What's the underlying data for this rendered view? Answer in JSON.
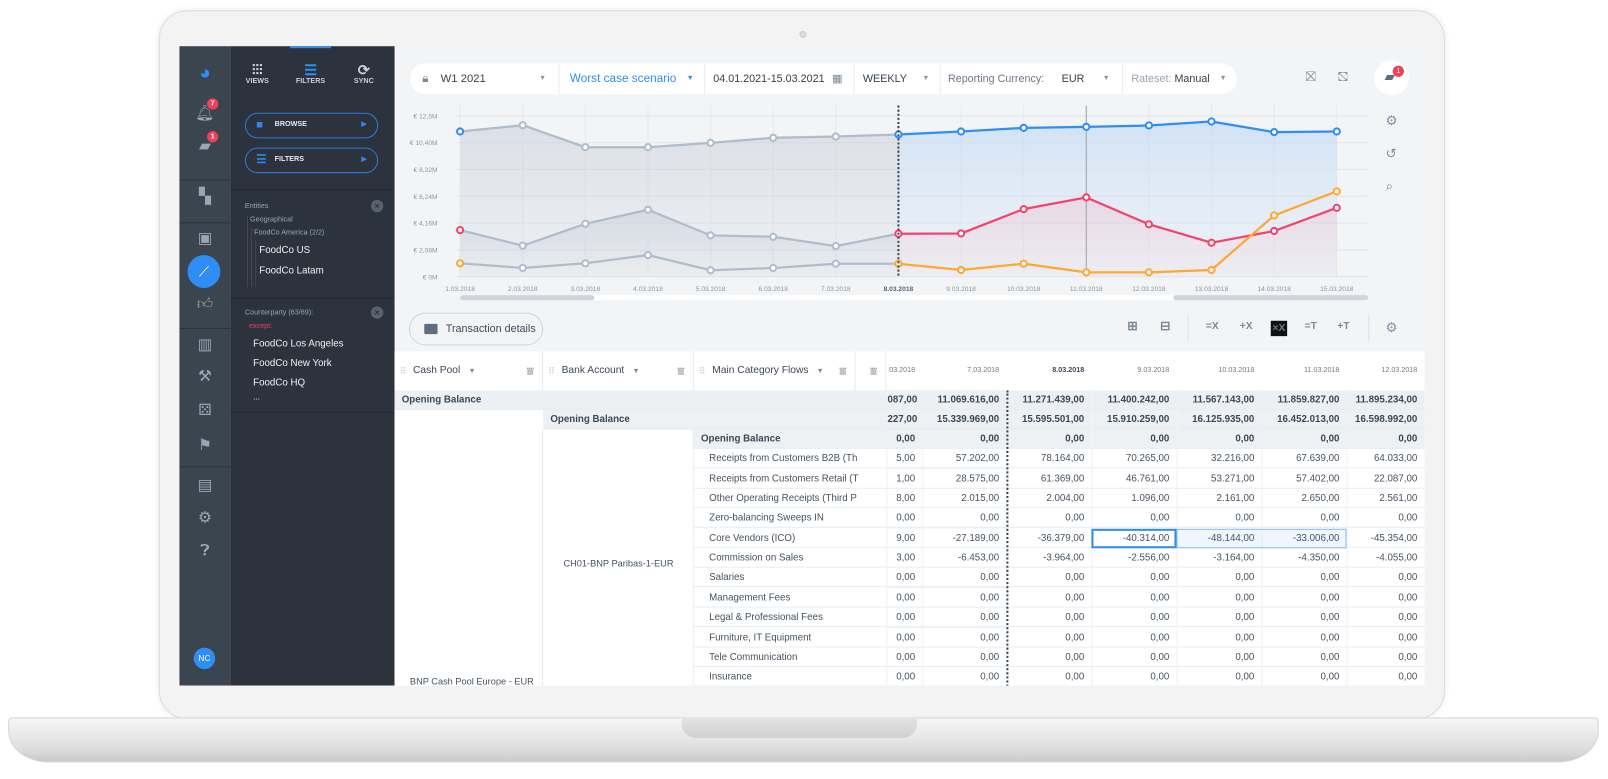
{
  "app": {
    "rail": {
      "badges": {
        "notifications": "7",
        "messages": "1"
      },
      "items": [
        "logo-icon",
        "bell-icon",
        "message-icon",
        "dashboard-icon",
        "wallet-icon",
        "chart-line-icon",
        "thumbs-up-icon",
        "report-icon",
        "gavel-icon",
        "dice-icon",
        "flag-icon",
        "document-icon",
        "gear-icon",
        "help-icon"
      ],
      "avatar": "NC"
    },
    "panel": {
      "tabs": [
        {
          "label": "VIEWS"
        },
        {
          "label": "FILTERS"
        },
        {
          "label": "SYNC"
        }
      ],
      "active_tab": "FILTERS",
      "browse_label": "BROWSE",
      "filters_label": "FILTERS",
      "entities": {
        "title": "Entities",
        "group": "Geographical",
        "subgroup": "FoodCo America (2/2)",
        "items": [
          "FoodCo US",
          "FoodCo Latam"
        ]
      },
      "counterparty": {
        "title": "Counterparty (63/69):",
        "except_label": "except:",
        "items": [
          "FoodCo Los Angeles",
          "FoodCo New York",
          "FoodCo HQ",
          "..."
        ]
      }
    },
    "toolbar": {
      "version": "W1 2021",
      "scenario": "Worst case scenario",
      "date_range": "04.01.2021-15.03.2021",
      "period": "WEEKLY",
      "currency_label": "Reporting Currency:",
      "currency": "EUR",
      "rateset_label": "Rateset:",
      "rateset": "Manual",
      "chat_badge": "1"
    },
    "actions": {
      "transaction_details": "Transaction details",
      "group_buttons": [
        "=X",
        "+X",
        "×X",
        "=T",
        "+T"
      ]
    },
    "colors": {
      "accent": "#2f8df5",
      "actual": "#b1bccb",
      "series_blue": "#2f8df5",
      "series_red": "#f4436c",
      "series_orange": "#ffa733",
      "panel": "#2c333d",
      "rail": "#3a4550"
    }
  },
  "chart_data": {
    "type": "line",
    "x": [
      "1.03.2018",
      "2.03.2018",
      "3.03.2018",
      "4.03.2018",
      "5.03.2018",
      "6.03.2018",
      "7.03.2018",
      "8.03.2018",
      "9.03.2018",
      "10.03.2018",
      "11.03.2018",
      "12.03.2018",
      "13.03.2018",
      "14.03.2018",
      "15.03.2018"
    ],
    "current_date": "8.03.2018",
    "y_ticks": [
      "€ 0M",
      "€ 2,08M",
      "€ 4,16M",
      "€ 6,24M",
      "€ 8,32M",
      "€ 10,40M",
      "€ 12,5M"
    ],
    "ylim": [
      0,
      12.5
    ],
    "y_unit": "M EUR",
    "grid": true,
    "series": [
      {
        "color": "#2f8df5",
        "values": [
          11.28,
          11.77,
          10.06,
          10.06,
          10.4,
          10.79,
          10.89,
          11.05,
          11.28,
          11.56,
          11.64,
          11.75,
          12.06,
          11.23,
          11.28
        ]
      },
      {
        "color": "#f4436c",
        "values": [
          3.62,
          2.41,
          4.11,
          5.2,
          3.21,
          3.1,
          2.38,
          3.34,
          3.36,
          5.25,
          6.16,
          4.07,
          2.64,
          3.55,
          5.35
        ]
      },
      {
        "color": "#ffa733",
        "values": [
          1.04,
          0.68,
          1.04,
          1.68,
          0.5,
          0.68,
          1.01,
          1.01,
          0.52,
          1.01,
          0.34,
          0.34,
          0.52,
          4.76,
          6.63
        ]
      }
    ]
  },
  "table": {
    "headers": [
      "Cash Pool",
      "Bank Account",
      "Main Category Flows"
    ],
    "date_columns": [
      "03.2018",
      "7.03.2018",
      "8.03.2018",
      "9.03.2018",
      "10.03.2018",
      "11.03.2018",
      "12.03.2018"
    ],
    "cash_pool": "BNP Cash Pool Europe - EUR",
    "bank_account": "CH01-BNP Paribas-1-EUR",
    "rows": [
      {
        "level": 1,
        "label": "Opening Balance",
        "values": [
          "087,00",
          "11.069.616,00",
          "11.271.439,00",
          "11.400.242,00",
          "11.567.143,00",
          "11.859.827,00",
          "11.895.234,00"
        ]
      },
      {
        "level": 2,
        "label": "Opening Balance",
        "values": [
          "227,00",
          "15.339.969,00",
          "15.595.501,00",
          "15.910.259,00",
          "16.125.935,00",
          "16.452.013,00",
          "16.598.992,00"
        ]
      },
      {
        "level": 3,
        "label": "Opening Balance",
        "values": [
          "0,00",
          "0,00",
          "0,00",
          "0,00",
          "0,00",
          "0,00",
          "0,00"
        ]
      },
      {
        "level": 4,
        "label": "Receipts from Customers B2B (Th",
        "values": [
          "5,00",
          "57.202,00",
          "78.164,00",
          "70.265,00",
          "32.216,00",
          "67.639,00",
          "64.033,00"
        ]
      },
      {
        "level": 4,
        "label": "Receipts from Customers Retail (T",
        "values": [
          "1,00",
          "28.575,00",
          "61.369,00",
          "46.761,00",
          "53.271,00",
          "57.402,00",
          "22.087,00"
        ]
      },
      {
        "level": 4,
        "label": "Other Operating Receipts (Third P",
        "values": [
          "8,00",
          "2.015,00",
          "2.004,00",
          "1.096,00",
          "2.161,00",
          "2.650,00",
          "2.561,00"
        ]
      },
      {
        "level": 4,
        "label": "Zero-balancing Sweeps IN",
        "values": [
          "0,00",
          "0,00",
          "0,00",
          "0,00",
          "0,00",
          "0,00",
          "0,00"
        ]
      },
      {
        "level": 4,
        "label": "Core Vendors (ICO)",
        "values": [
          "9,00",
          "-27.189,00",
          "-36.379,00",
          "-40.314,00",
          "-48.144,00",
          "-33.006,00",
          "-45.354,00"
        ]
      },
      {
        "level": 4,
        "label": "Commission on Sales",
        "values": [
          "3,00",
          "-6.453,00",
          "-3.964,00",
          "-2.556,00",
          "-3.164,00",
          "-4.350,00",
          "-4.055,00"
        ]
      },
      {
        "level": 4,
        "label": "Salaries",
        "values": [
          "0,00",
          "0,00",
          "0,00",
          "0,00",
          "0,00",
          "0,00",
          "0,00"
        ]
      },
      {
        "level": 4,
        "label": "Management Fees",
        "values": [
          "0,00",
          "0,00",
          "0,00",
          "0,00",
          "0,00",
          "0,00",
          "0,00"
        ]
      },
      {
        "level": 4,
        "label": "Legal & Professional Fees",
        "values": [
          "0,00",
          "0,00",
          "0,00",
          "0,00",
          "0,00",
          "0,00",
          "0,00"
        ]
      },
      {
        "level": 4,
        "label": "Furniture, IT Equipment",
        "values": [
          "0,00",
          "0,00",
          "0,00",
          "0,00",
          "0,00",
          "0,00",
          "0,00"
        ]
      },
      {
        "level": 4,
        "label": "Tele Communication",
        "values": [
          "0,00",
          "0,00",
          "0,00",
          "0,00",
          "0,00",
          "0,00",
          "0,00"
        ]
      },
      {
        "level": 4,
        "label": "Insurance",
        "values": [
          "0,00",
          "0,00",
          "0,00",
          "0,00",
          "0,00",
          "0,00",
          "0,00"
        ]
      }
    ]
  }
}
